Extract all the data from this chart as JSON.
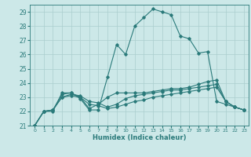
{
  "title": "",
  "xlabel": "Humidex (Indice chaleur)",
  "xlim": [
    -0.5,
    23.5
  ],
  "ylim": [
    21,
    29.5
  ],
  "yticks": [
    21,
    22,
    23,
    24,
    25,
    26,
    27,
    28,
    29
  ],
  "xticks": [
    0,
    1,
    2,
    3,
    4,
    5,
    6,
    7,
    8,
    9,
    10,
    11,
    12,
    13,
    14,
    15,
    16,
    17,
    18,
    19,
    20,
    21,
    22,
    23
  ],
  "background_color": "#cce8e8",
  "grid_color": "#aacece",
  "line_color": "#2a7a7a",
  "lines": [
    [
      21.0,
      22.0,
      22.0,
      23.3,
      23.3,
      22.9,
      22.1,
      22.1,
      24.4,
      26.7,
      26.0,
      28.0,
      28.6,
      29.2,
      29.0,
      28.8,
      27.3,
      27.1,
      26.1,
      26.2,
      22.7,
      22.5,
      22.3,
      22.1
    ],
    [
      21.0,
      22.0,
      22.1,
      23.2,
      23.3,
      23.0,
      22.2,
      22.5,
      23.0,
      23.3,
      23.3,
      23.3,
      23.3,
      23.4,
      23.5,
      23.6,
      23.6,
      23.7,
      23.9,
      24.1,
      24.2,
      22.7,
      22.3,
      22.1
    ],
    [
      21.0,
      22.0,
      22.1,
      23.0,
      23.2,
      23.1,
      22.7,
      22.6,
      22.3,
      22.5,
      22.9,
      23.1,
      23.2,
      23.3,
      23.4,
      23.5,
      23.5,
      23.6,
      23.7,
      23.8,
      23.9,
      22.7,
      22.3,
      22.1
    ],
    [
      21.0,
      22.0,
      22.1,
      23.0,
      23.1,
      23.0,
      22.5,
      22.4,
      22.2,
      22.3,
      22.5,
      22.7,
      22.8,
      23.0,
      23.1,
      23.2,
      23.3,
      23.4,
      23.5,
      23.6,
      23.7,
      22.7,
      22.3,
      22.1
    ]
  ]
}
